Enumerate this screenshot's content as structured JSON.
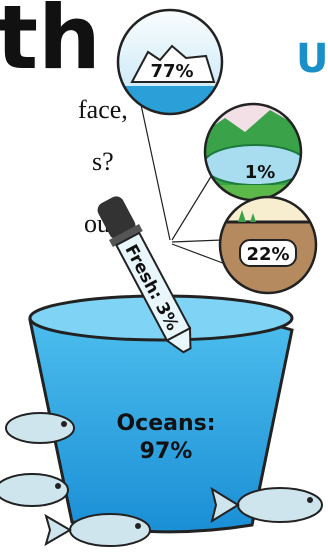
{
  "headline": {
    "title": "th",
    "subtitle": "U"
  },
  "body": [
    "face,",
    "s?",
    "ould"
  ],
  "circles": [
    {
      "label": "77%"
    },
    {
      "label": "1%"
    },
    {
      "label": "22%"
    }
  ],
  "dropper": {
    "label": "Fresh: 3%"
  },
  "bucket": {
    "label": "Oceans:",
    "value": "97%"
  }
}
